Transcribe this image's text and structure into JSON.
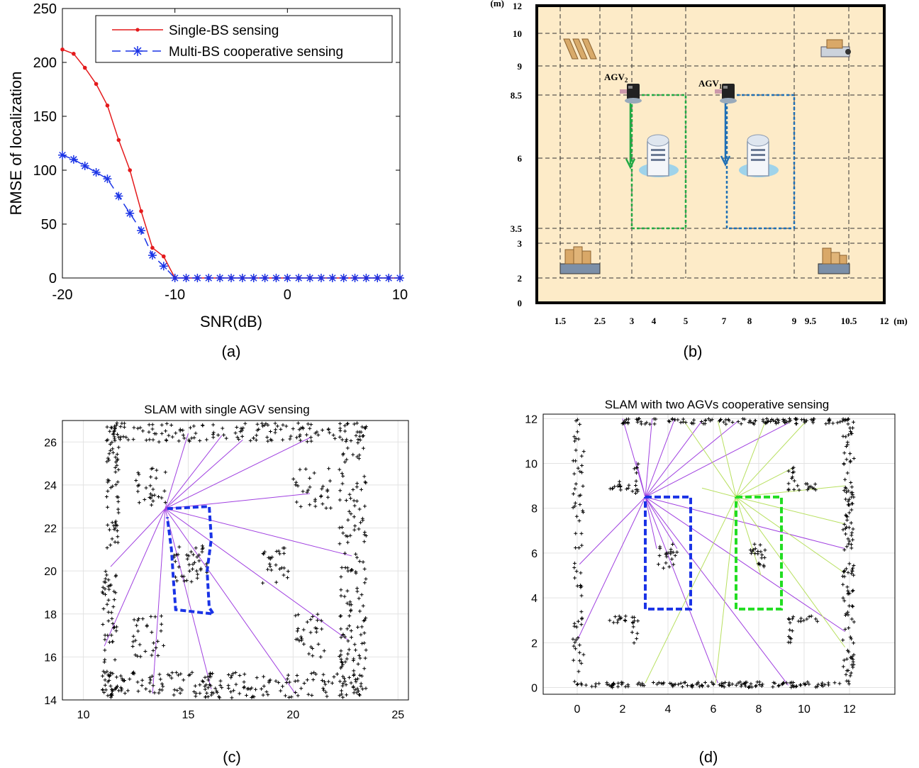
{
  "chart_data": [
    {
      "type": "line",
      "caption": "(a)",
      "xlabel": "SNR(dB)",
      "ylabel": "RMSE of localization",
      "xlim": [
        -20,
        10
      ],
      "ylim": [
        0,
        250
      ],
      "xticks": [
        "-20",
        "-10",
        "0",
        "10"
      ],
      "yticks": [
        "0",
        "50",
        "100",
        "150",
        "200",
        "250"
      ],
      "legend_position": "top-right",
      "x": [
        -20,
        -19,
        -18,
        -17,
        -16,
        -15,
        -14,
        -13,
        -12,
        -11,
        -10,
        -9,
        -8,
        -7,
        -6,
        -5,
        -4,
        -3,
        -2,
        -1,
        0,
        1,
        2,
        3,
        4,
        5,
        6,
        7,
        8,
        9,
        10
      ],
      "series": [
        {
          "name": "Single-BS sensing",
          "color": "#e41a1c",
          "marker": "dot",
          "values": [
            212,
            208,
            195,
            180,
            160,
            128,
            100,
            62,
            28,
            20,
            0,
            0,
            0,
            0,
            0,
            0,
            0,
            0,
            0,
            0,
            0,
            0,
            0,
            0,
            0,
            0,
            0,
            0,
            0,
            0,
            0
          ]
        },
        {
          "name": "Multi-BS cooperative sensing",
          "color": "#1a33e6",
          "marker": "star",
          "values": [
            114,
            110,
            104,
            98,
            92,
            76,
            60,
            44,
            21,
            11,
            0,
            0,
            0,
            0,
            0,
            0,
            0,
            0,
            0,
            0,
            0,
            0,
            0,
            0,
            0,
            0,
            0,
            0,
            0,
            0,
            0
          ]
        }
      ]
    },
    {
      "type": "diagram",
      "caption": "(b)",
      "unit_label": "(m)",
      "xlim": [
        0,
        12
      ],
      "ylim": [
        0,
        12
      ],
      "x_tick_labels": [
        "1.5",
        "2.5",
        "3",
        "4",
        "5",
        "7",
        "8",
        "9",
        "9.5",
        "10.5",
        "12"
      ],
      "x_tick_values": [
        1.5,
        2.5,
        3,
        4,
        5,
        7,
        8,
        9,
        9.5,
        10.5,
        12
      ],
      "y_tick_labels": [
        "0",
        "2",
        "3",
        "3.5",
        "6",
        "8.5",
        "9",
        "10",
        "12"
      ],
      "y_tick_values": [
        0,
        2,
        3,
        3.5,
        6,
        8.5,
        9,
        10,
        12
      ],
      "agv_labels": [
        {
          "name": "AGV",
          "sub": "2"
        },
        {
          "name": "AGV",
          "sub": "1"
        }
      ],
      "colors": {
        "floor": "#fdebc8",
        "wall": "#000000",
        "path_green": "#22aa44",
        "path_blue": "#1f6fb5"
      }
    },
    {
      "type": "scatter",
      "caption": "(c)",
      "title": "SLAM with single AGV sensing",
      "xlim": [
        9,
        25.5
      ],
      "ylim": [
        14,
        27
      ],
      "xticks": [
        "10",
        "15",
        "20",
        "25"
      ],
      "yticks": [
        "14",
        "16",
        "18",
        "20",
        "22",
        "24",
        "26"
      ],
      "agv_position": [
        13.9,
        22.9
      ],
      "colors": {
        "beam": "#a040e0",
        "path": "#1a33e6",
        "points": "#000000"
      }
    },
    {
      "type": "scatter",
      "caption": "(d)",
      "title": "SLAM with two AGVs cooperative sensing",
      "xlim": [
        -1.5,
        14
      ],
      "ylim": [
        -0.3,
        12.2
      ],
      "xticks": [
        "0",
        "2",
        "4",
        "6",
        "8",
        "10",
        "12"
      ],
      "yticks": [
        "0",
        "2",
        "4",
        "6",
        "8",
        "10",
        "12"
      ],
      "agv_positions": [
        [
          3,
          8.5
        ],
        [
          7,
          8.5
        ]
      ],
      "colors": {
        "beam1": "#a040e0",
        "beam2": "#b8e060",
        "path1": "#1a33e6",
        "path2": "#22dd22",
        "points": "#000000"
      }
    }
  ]
}
